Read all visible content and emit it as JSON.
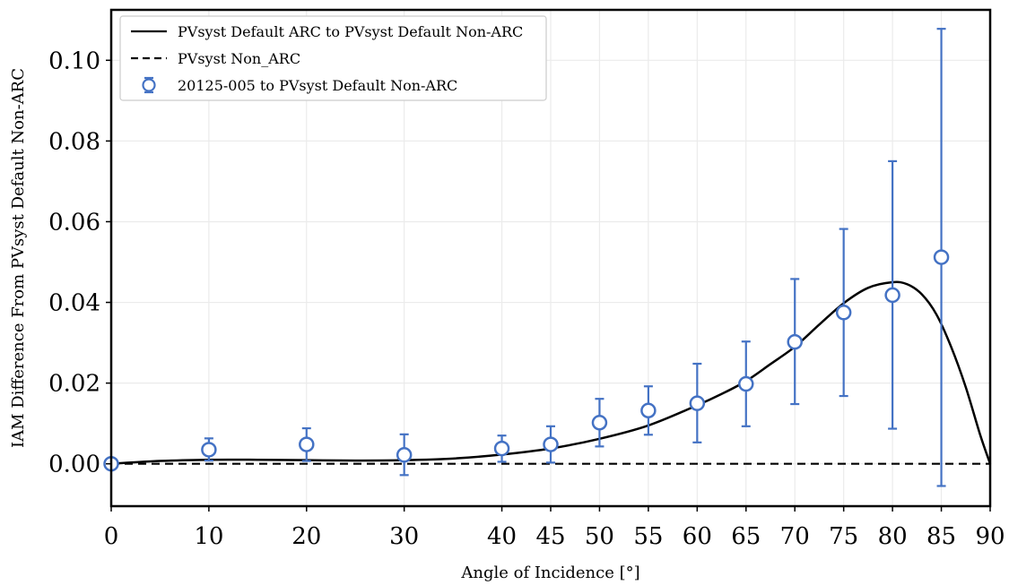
{
  "chart_data": {
    "type": "line",
    "title": "",
    "xlabel": "Angle of Incidence [°]",
    "ylabel": "IAM Difference From PVsyst Default Non-ARC",
    "xlim": [
      0,
      90
    ],
    "ylim": [
      -0.0105,
      0.1125
    ],
    "x_ticks": [
      0,
      10,
      20,
      30,
      40,
      45,
      50,
      55,
      60,
      65,
      70,
      75,
      80,
      85,
      90
    ],
    "x_tick_labels": [
      "0",
      "10",
      "20",
      "30",
      "40",
      "45",
      "50",
      "55",
      "60",
      "65",
      "70",
      "75",
      "80",
      "85",
      "90"
    ],
    "y_ticks": [
      0.0,
      0.02,
      0.04,
      0.06,
      0.08,
      0.1
    ],
    "y_tick_labels": [
      "0.00",
      "0.02",
      "0.04",
      "0.06",
      "0.08",
      "0.10"
    ],
    "grid": true,
    "legend_position": "top-left",
    "series": [
      {
        "name": "PVsyst Default ARC to PVsyst Default Non-ARC",
        "style": "solid-line",
        "color": "#000000",
        "x": [
          0,
          5,
          10,
          15,
          20,
          25,
          30,
          35,
          40,
          45,
          50,
          55,
          60,
          62.5,
          65,
          67.5,
          70,
          72.5,
          75,
          77.5,
          80,
          81.5,
          83,
          84.5,
          86,
          87.5,
          89,
          90
        ],
        "y": [
          0.0,
          0.0007,
          0.001,
          0.001,
          0.0009,
          0.0008,
          0.0009,
          0.0013,
          0.0023,
          0.0038,
          0.0062,
          0.0095,
          0.0145,
          0.0173,
          0.0205,
          0.0247,
          0.029,
          0.0345,
          0.0398,
          0.0436,
          0.045,
          0.0445,
          0.042,
          0.037,
          0.029,
          0.019,
          0.007,
          0.0
        ]
      },
      {
        "name": "PVsyst Non_ARC",
        "style": "dashed-line",
        "color": "#000000",
        "x": [
          0,
          90
        ],
        "y": [
          0.0,
          0.0
        ]
      },
      {
        "name": "20125-005 to PVsyst Default Non-ARC",
        "style": "markers-with-errorbars",
        "color": "#4472c4",
        "points": [
          {
            "x": 0,
            "y": 0.0,
            "lo": 0.0,
            "hi": 0.0
          },
          {
            "x": 10,
            "y": 0.0035,
            "lo": 0.0008,
            "hi": 0.0063
          },
          {
            "x": 20,
            "y": 0.0048,
            "lo": 0.0007,
            "hi": 0.0088
          },
          {
            "x": 30,
            "y": 0.0022,
            "lo": -0.0028,
            "hi": 0.0073
          },
          {
            "x": 40,
            "y": 0.0038,
            "lo": 0.0005,
            "hi": 0.007
          },
          {
            "x": 45,
            "y": 0.0048,
            "lo": 0.0003,
            "hi": 0.0093
          },
          {
            "x": 50,
            "y": 0.0102,
            "lo": 0.0043,
            "hi": 0.0161
          },
          {
            "x": 55,
            "y": 0.0132,
            "lo": 0.0072,
            "hi": 0.0192
          },
          {
            "x": 60,
            "y": 0.015,
            "lo": 0.0053,
            "hi": 0.0248
          },
          {
            "x": 65,
            "y": 0.0198,
            "lo": 0.0093,
            "hi": 0.0303
          },
          {
            "x": 70,
            "y": 0.0302,
            "lo": 0.0148,
            "hi": 0.0458
          },
          {
            "x": 75,
            "y": 0.0375,
            "lo": 0.0168,
            "hi": 0.0582
          },
          {
            "x": 80,
            "y": 0.0418,
            "lo": 0.0087,
            "hi": 0.075
          },
          {
            "x": 85,
            "y": 0.0512,
            "lo": -0.0055,
            "hi": 0.1078
          }
        ]
      }
    ]
  }
}
